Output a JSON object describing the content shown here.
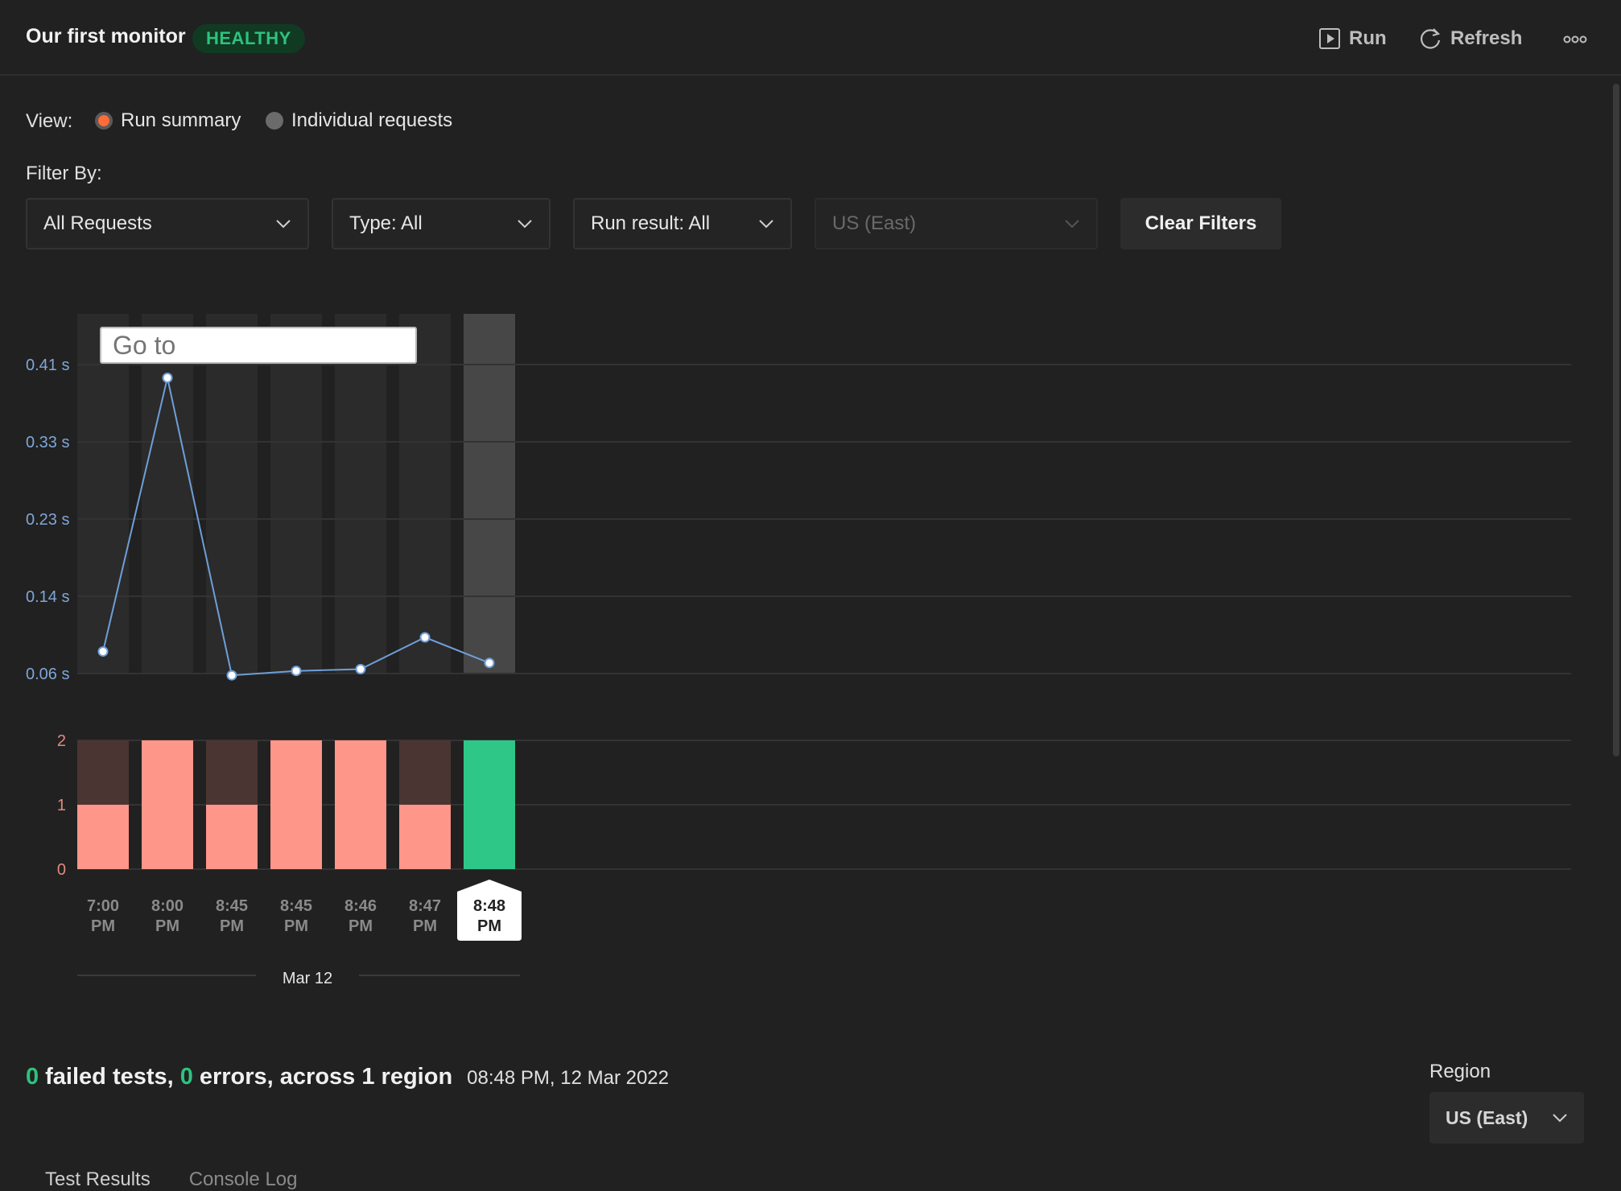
{
  "header": {
    "title": "Our first monitor",
    "status_badge": "HEALTHY",
    "run_label": "Run",
    "refresh_label": "Refresh"
  },
  "view": {
    "label": "View:",
    "options": [
      "Run summary",
      "Individual requests"
    ],
    "selected": "Run summary"
  },
  "filters": {
    "label": "Filter By:",
    "requests": "All Requests",
    "type": "Type: All",
    "run_result": "Run result: All",
    "region": "US (East)",
    "clear_label": "Clear Filters"
  },
  "tooltip_input": {
    "placeholder": "Go to"
  },
  "chart_data": [
    {
      "type": "line",
      "title": "",
      "ylabel": "",
      "y_ticks": [
        "0.41 s",
        "0.33 s",
        "0.23 s",
        "0.14 s",
        "0.06 s"
      ],
      "ylim": [
        0.06,
        0.41
      ],
      "categories": [
        "7:00 PM",
        "8:00 PM",
        "8:45 PM",
        "8:45 PM",
        "8:46 PM",
        "8:47 PM",
        "8:48 PM"
      ],
      "series": [
        {
          "values": [
            0.085,
            0.395,
            0.058,
            0.063,
            0.065,
            0.101,
            0.072
          ]
        }
      ],
      "selected_index": 6,
      "color": "#6f9fd8",
      "grid": true
    },
    {
      "type": "bar",
      "y_ticks": [
        "2",
        "1",
        "0"
      ],
      "ylim": [
        0,
        2
      ],
      "categories": [
        "7:00 PM",
        "8:00 PM",
        "8:45 PM",
        "8:45 PM",
        "8:46 PM",
        "8:47 PM",
        "8:48 PM"
      ],
      "series": [
        {
          "values": [
            1,
            2,
            1,
            2,
            2,
            1,
            0
          ],
          "color": "#ff968a"
        },
        {
          "values": [
            1,
            0,
            1,
            0,
            0,
            1,
            0
          ],
          "color": "#4b3532"
        },
        {
          "values": [
            0,
            0,
            0,
            0,
            0,
            0,
            2
          ],
          "color": "#2ec788"
        }
      ],
      "date_label": "Mar 12"
    }
  ],
  "summary": {
    "failed_count": "0",
    "failed_text": "failed tests,",
    "error_count": "0",
    "error_text": "errors, across 1 region",
    "timestamp": "08:48 PM, 12 Mar 2022"
  },
  "region": {
    "label": "Region",
    "value": "US (East)"
  },
  "tabs": [
    "Test Results",
    "Console Log"
  ],
  "colors": {
    "accent": "#ff6c37",
    "healthy": "#2ec27e",
    "background": "#212121"
  }
}
